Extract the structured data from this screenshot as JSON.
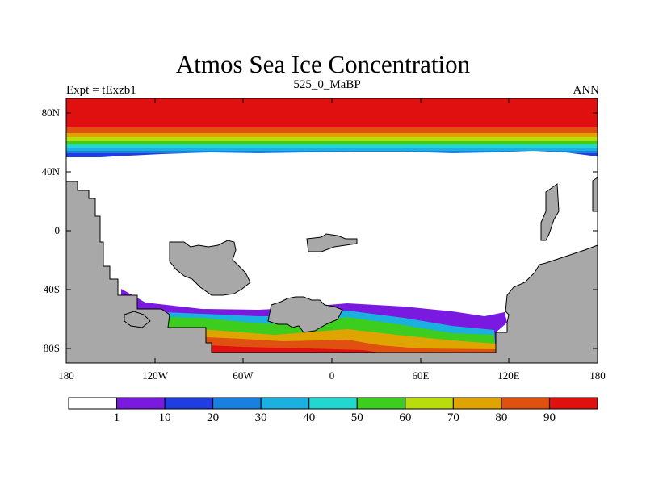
{
  "title": "Atmos Sea Ice Concentration",
  "subtitle": "525_0_MaBP",
  "left_label": "Expt = tExzb1",
  "right_label": "ANN",
  "lat_labels": [
    "80N",
    "40N",
    "0",
    "40S",
    "80S"
  ],
  "lon_labels": [
    "180",
    "120W",
    "60W",
    "0",
    "60E",
    "120E",
    "180"
  ],
  "colorbar": {
    "colors": [
      "#ffffff",
      "#7a1ae0",
      "#1f3de0",
      "#1a80e0",
      "#1ab0e0",
      "#20d8d0",
      "#3ccd1e",
      "#b9dd0a",
      "#e0a400",
      "#e05010",
      "#e01010"
    ],
    "labels": [
      "1",
      "10",
      "20",
      "30",
      "40",
      "50",
      "60",
      "70",
      "80",
      "90"
    ]
  },
  "land_color": "#a8a8a8"
}
